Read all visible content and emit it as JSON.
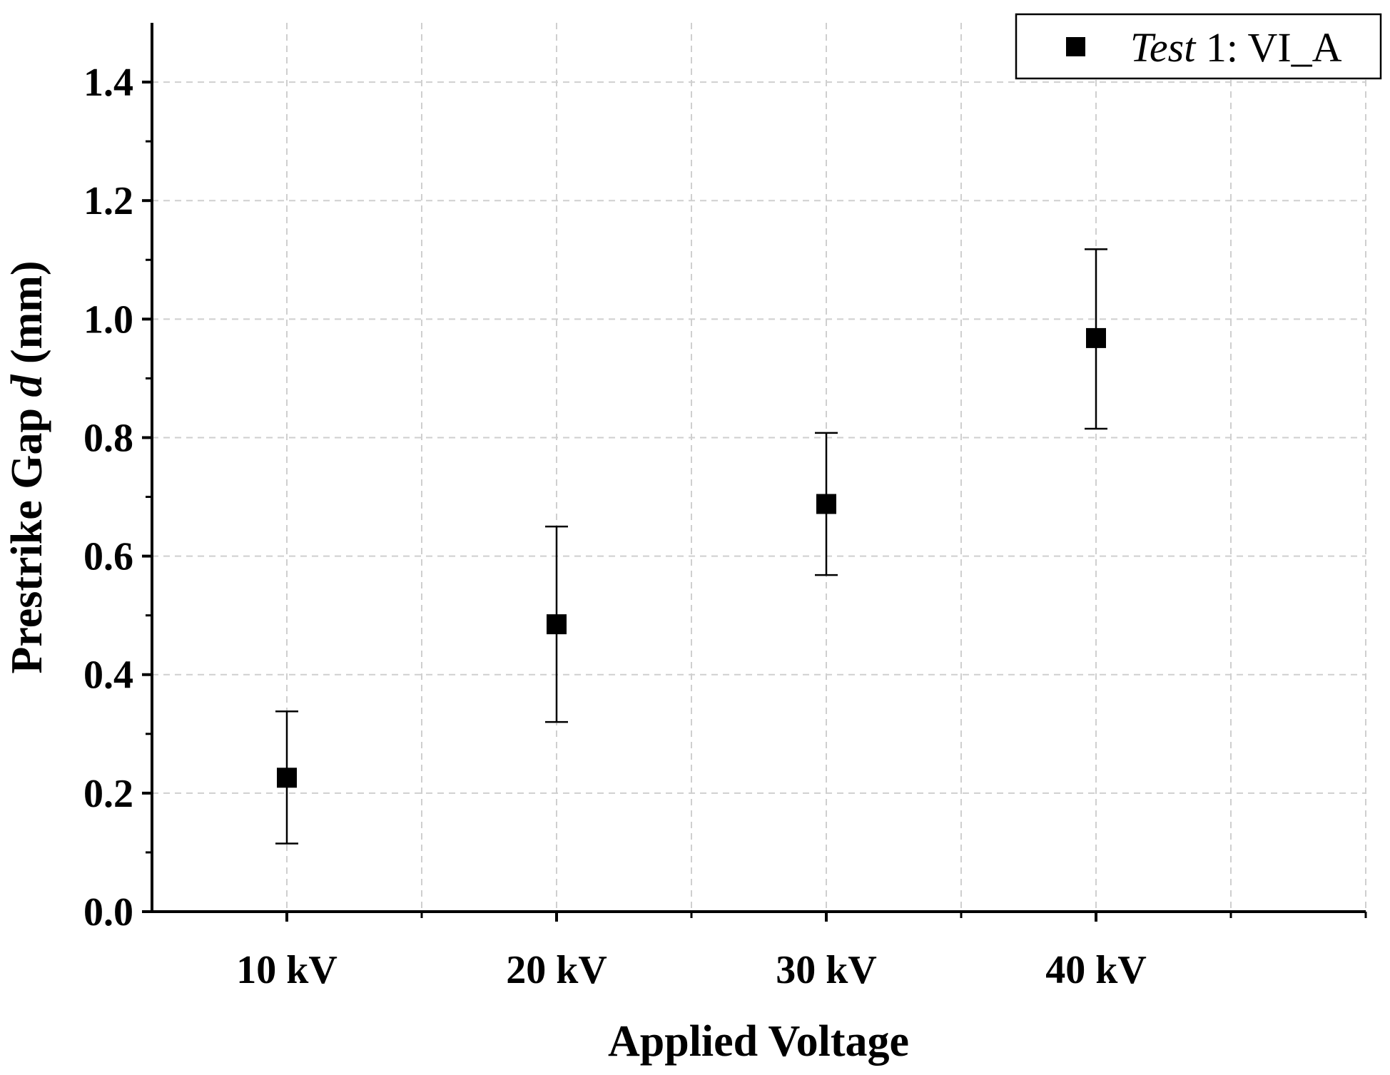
{
  "chart_data": {
    "type": "scatter",
    "title": "",
    "xlabel": "Applied Voltage",
    "ylabel": {
      "prefix": "Prestrike Gap ",
      "italic": "d",
      "suffix": " (mm)"
    },
    "categories": [
      "10 kV",
      "20 kV",
      "30 kV",
      "40 kV"
    ],
    "ylim": [
      0.0,
      1.5
    ],
    "yticks": [
      0.0,
      0.2,
      0.4,
      0.6,
      0.8,
      1.0,
      1.2,
      1.4
    ],
    "ytick_labels": [
      "0.0",
      "0.2",
      "0.4",
      "0.6",
      "0.8",
      "1.0",
      "1.2",
      "1.4"
    ],
    "grid": true,
    "legend_position": "top-right",
    "series": [
      {
        "name": "Test 1: VI_A",
        "legend": {
          "italic": "Test",
          "rest": " 1: VI_A"
        },
        "marker": "square",
        "color": "#000000",
        "values": [
          0.226,
          0.485,
          0.688,
          0.968
        ],
        "error_low": [
          0.115,
          0.32,
          0.568,
          0.815
        ],
        "error_high": [
          0.338,
          0.65,
          0.808,
          1.118
        ]
      }
    ]
  }
}
